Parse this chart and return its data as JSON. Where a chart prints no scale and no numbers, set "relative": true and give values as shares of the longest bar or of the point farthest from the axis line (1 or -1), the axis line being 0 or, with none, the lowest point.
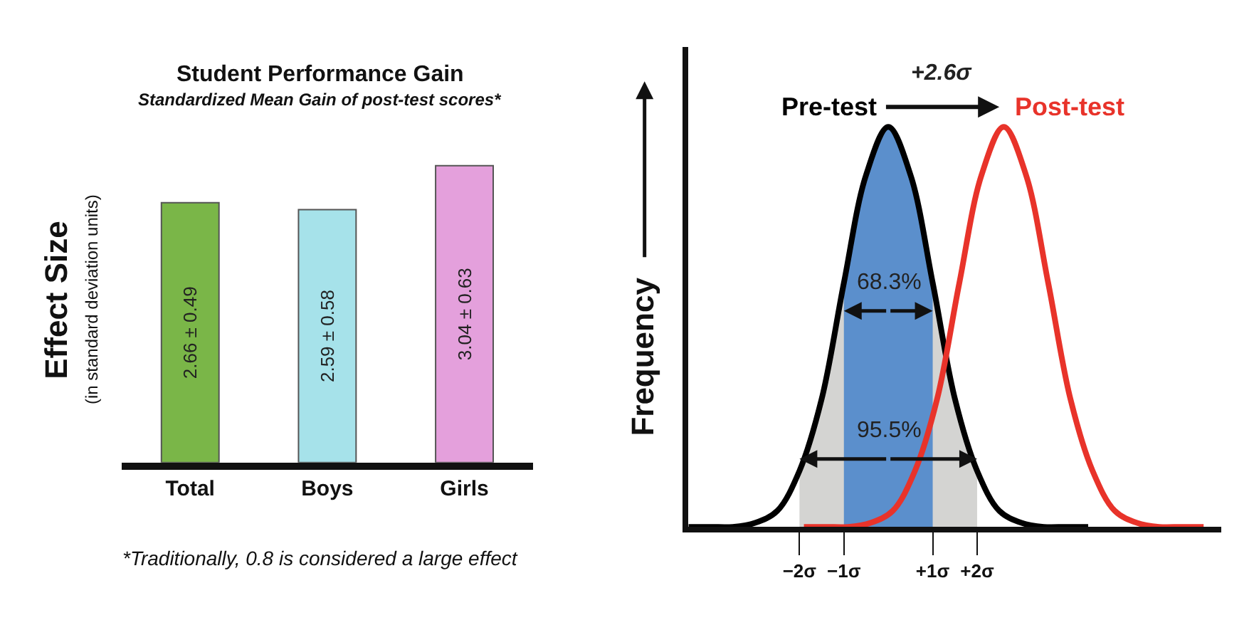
{
  "chart_data": [
    {
      "type": "bar",
      "title": "Student Performance Gain",
      "subtitle": "Standardized Mean Gain of post-test scores*",
      "ylabel": "Effect Size\n(in standard deviation units)",
      "categories": [
        "Total",
        "Boys",
        "Girls"
      ],
      "values": [
        2.66,
        2.59,
        3.04
      ],
      "colors": [
        "#7ab648",
        "#a6e2ea",
        "#e4a0dc"
      ],
      "value_labels": [
        "2.66 ± 0.49",
        "2.59 ± 0.58",
        "3.04 ± 0.63"
      ],
      "annotations": [
        "*Traditionally, 0.8 is considered a large effect"
      ]
    },
    {
      "type": "line",
      "relative": true,
      "ylabel": "Frequency",
      "xlim": [
        -4.5,
        7.5
      ],
      "xticks": [
        {
          "value": -2,
          "label": "−2σ"
        },
        {
          "value": -1,
          "label": "−1σ"
        },
        {
          "value": 1,
          "label": "+1σ"
        },
        {
          "value": 2,
          "label": "+2σ"
        }
      ],
      "series": [
        {
          "type": "area",
          "color": "#d4d4d2",
          "x": [
            -2,
            -1.5,
            -1,
            -0.5,
            0,
            0.5,
            1,
            1.5,
            2
          ],
          "values": [
            0.14,
            0.32,
            0.61,
            0.88,
            1,
            0.88,
            0.61,
            0.32,
            0.14
          ]
        },
        {
          "type": "area",
          "color": "#5b8fcc",
          "x": [
            -1,
            -0.5,
            0,
            0.5,
            1
          ],
          "values": [
            0.61,
            0.88,
            1,
            0.88,
            0.61
          ]
        },
        {
          "name": "Pre-test",
          "color": "#000000",
          "x": [
            -4.5,
            -4,
            -3.5,
            -3,
            -2.5,
            -2,
            -1.5,
            -1,
            -0.5,
            0,
            0.5,
            1,
            1.5,
            2,
            2.5,
            3,
            3.5,
            4,
            4.5
          ],
          "values": [
            0,
            0,
            0,
            0.01,
            0.04,
            0.14,
            0.32,
            0.61,
            0.88,
            1,
            0.88,
            0.61,
            0.32,
            0.14,
            0.04,
            0.01,
            0,
            0,
            0
          ]
        },
        {
          "name": "Post-test",
          "color": "#e8332a",
          "x": [
            -1.9,
            -1.4,
            -0.9,
            -0.4,
            0.1,
            0.6,
            1.1,
            1.6,
            2.1,
            2.6,
            3.1,
            3.6,
            4.1,
            4.6,
            5.1,
            5.6,
            6.1,
            6.6,
            7.1
          ],
          "values": [
            0,
            0,
            0,
            0.01,
            0.04,
            0.14,
            0.32,
            0.61,
            0.88,
            1,
            0.88,
            0.61,
            0.32,
            0.14,
            0.04,
            0.01,
            0,
            0,
            0
          ]
        }
      ],
      "annotations": [
        "95.5%",
        "68.3%",
        "+2.6σ"
      ],
      "legend": false,
      "marker": "none",
      "line_style": "solid"
    }
  ]
}
